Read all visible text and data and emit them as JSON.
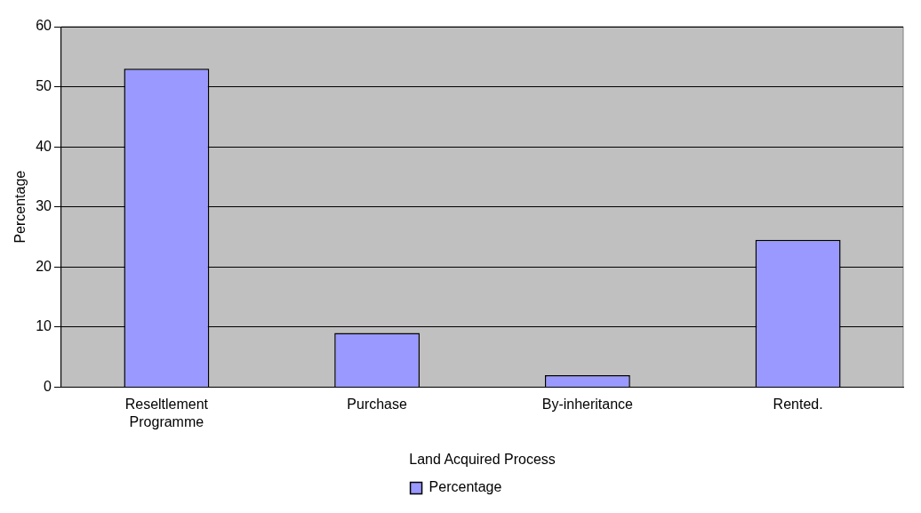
{
  "chart_data": {
    "type": "bar",
    "xlabel": "Land Acquired Process",
    "ylabel": "Percentage",
    "categories": [
      "Reseltlement Programme",
      "Purchase",
      "By-inheritance",
      "Rented."
    ],
    "series": [
      {
        "name": "Percentage",
        "color": "#9999ff",
        "values": [
          53,
          9,
          2,
          24.5
        ]
      }
    ],
    "ylim": [
      0,
      60
    ],
    "yticks": [
      0,
      10,
      20,
      30,
      40,
      50,
      60
    ],
    "grid": "y",
    "legend": "bottom"
  }
}
